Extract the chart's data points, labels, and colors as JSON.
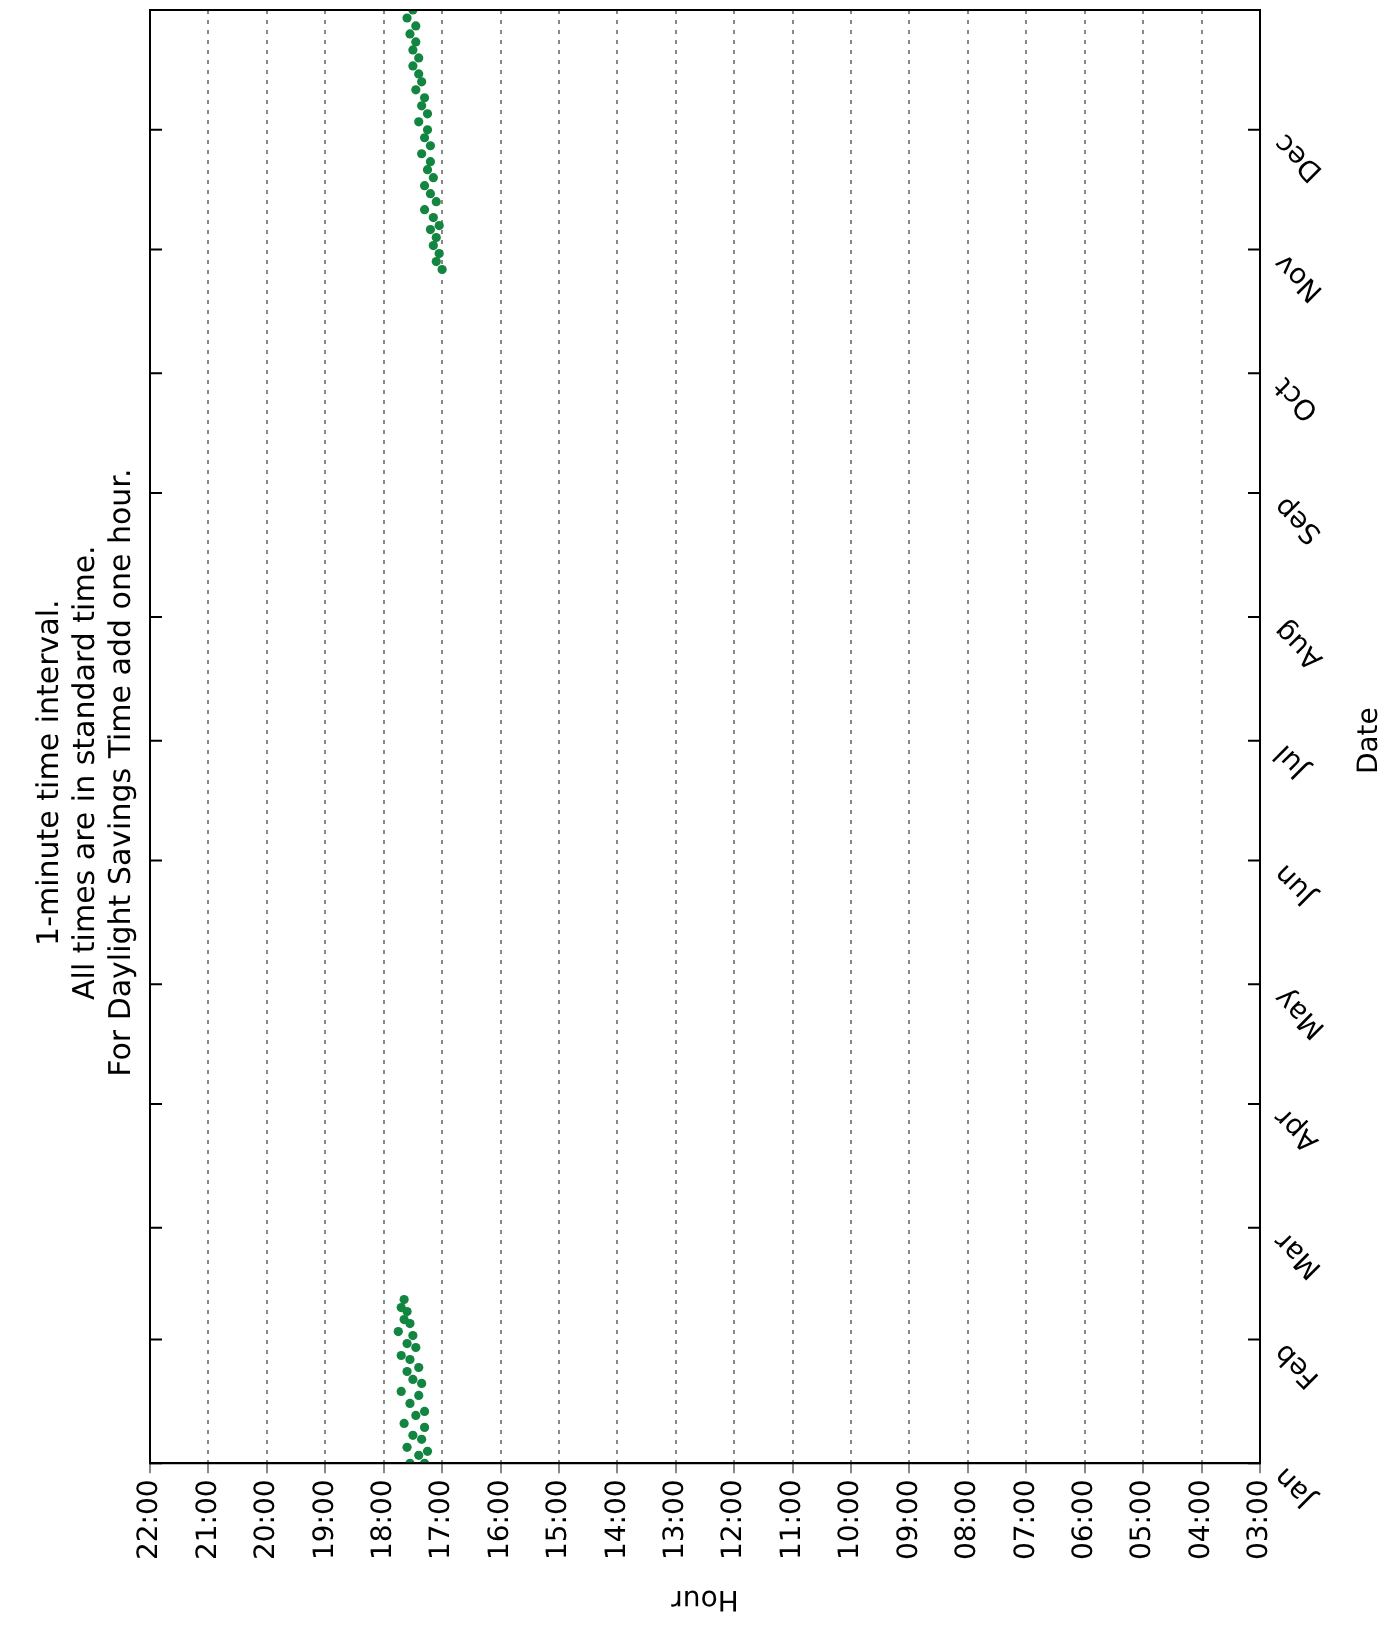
{
  "chart_data": {
    "type": "scatter",
    "orientation": "horizontal",
    "annotations": [
      "1-minute time interval.",
      "All times are in standard time.",
      "For Daylight Savings Time add one hour."
    ],
    "xlabel": "Hour",
    "ylabel": "Date",
    "xlim": [
      22,
      3
    ],
    "xticks": [
      {
        "value": 22,
        "label": "22:00"
      },
      {
        "value": 21,
        "label": "21:00"
      },
      {
        "value": 20,
        "label": "20:00"
      },
      {
        "value": 19,
        "label": "19:00"
      },
      {
        "value": 18,
        "label": "18:00"
      },
      {
        "value": 17,
        "label": "17:00"
      },
      {
        "value": 16,
        "label": "16:00"
      },
      {
        "value": 15,
        "label": "15:00"
      },
      {
        "value": 14,
        "label": "14:00"
      },
      {
        "value": 13,
        "label": "13:00"
      },
      {
        "value": 12,
        "label": "12:00"
      },
      {
        "value": 11,
        "label": "11:00"
      },
      {
        "value": 10,
        "label": "10:00"
      },
      {
        "value": 9,
        "label": "09:00"
      },
      {
        "value": 8,
        "label": "08:00"
      },
      {
        "value": 7,
        "label": "07:00"
      },
      {
        "value": 6,
        "label": "06:00"
      },
      {
        "value": 5,
        "label": "05:00"
      },
      {
        "value": 4,
        "label": "04:00"
      },
      {
        "value": 3,
        "label": "03:00"
      }
    ],
    "ylim": [
      "--01-01",
      "--12-31"
    ],
    "yticks": [
      {
        "value": "--01-01",
        "label": "Jan"
      },
      {
        "value": "--02-01",
        "label": "Feb"
      },
      {
        "value": "--03-01",
        "label": "Mar"
      },
      {
        "value": "--04-01",
        "label": "Apr"
      },
      {
        "value": "--05-01",
        "label": "May"
      },
      {
        "value": "--06-01",
        "label": "Jun"
      },
      {
        "value": "--07-01",
        "label": "Jul"
      },
      {
        "value": "--08-01",
        "label": "Aug"
      },
      {
        "value": "--09-01",
        "label": "Sep"
      },
      {
        "value": "--10-01",
        "label": "Oct"
      },
      {
        "value": "--11-01",
        "label": "Nov"
      },
      {
        "value": "--12-01",
        "label": "Dec"
      }
    ],
    "grid": "x",
    "marker": "circle",
    "series": [
      {
        "color": "#128540",
        "x": [
          "--01-01",
          "--01-01",
          "--01-03",
          "--01-04",
          "--01-05",
          "--01-07",
          "--01-08",
          "--01-10",
          "--01-11",
          "--01-13",
          "--01-14",
          "--01-16",
          "--01-18",
          "--01-19",
          "--01-21",
          "--01-22",
          "--01-24",
          "--01-25",
          "--01-27",
          "--01-28",
          "--01-30",
          "--01-31",
          "--02-02",
          "--02-03",
          "--02-05",
          "--02-06",
          "--02-08",
          "--02-09",
          "--02-11",
          "--10-27",
          "--10-29",
          "--10-31",
          "--11-02",
          "--11-04",
          "--11-06",
          "--11-07",
          "--11-09",
          "--11-11",
          "--11-13",
          "--11-15",
          "--11-17",
          "--11-19",
          "--11-21",
          "--11-23",
          "--11-25",
          "--11-27",
          "--11-29",
          "--12-01",
          "--12-03",
          "--12-05",
          "--12-07",
          "--12-09",
          "--12-11",
          "--12-13",
          "--12-15",
          "--12-17",
          "--12-19",
          "--12-21",
          "--12-23",
          "--12-25",
          "--12-27",
          "--12-29",
          "--12-31"
        ],
        "values": [
          17.3,
          17.55,
          17.4,
          17.25,
          17.6,
          17.35,
          17.5,
          17.3,
          17.65,
          17.45,
          17.3,
          17.55,
          17.4,
          17.7,
          17.35,
          17.5,
          17.6,
          17.4,
          17.55,
          17.7,
          17.45,
          17.6,
          17.5,
          17.75,
          17.55,
          17.65,
          17.6,
          17.7,
          17.65,
          17.0,
          17.1,
          17.05,
          17.15,
          17.1,
          17.2,
          17.05,
          17.15,
          17.3,
          17.1,
          17.2,
          17.3,
          17.15,
          17.25,
          17.2,
          17.35,
          17.2,
          17.3,
          17.25,
          17.4,
          17.25,
          17.35,
          17.3,
          17.45,
          17.35,
          17.4,
          17.5,
          17.4,
          17.5,
          17.45,
          17.55,
          17.45,
          17.6,
          17.5
        ]
      }
    ]
  }
}
